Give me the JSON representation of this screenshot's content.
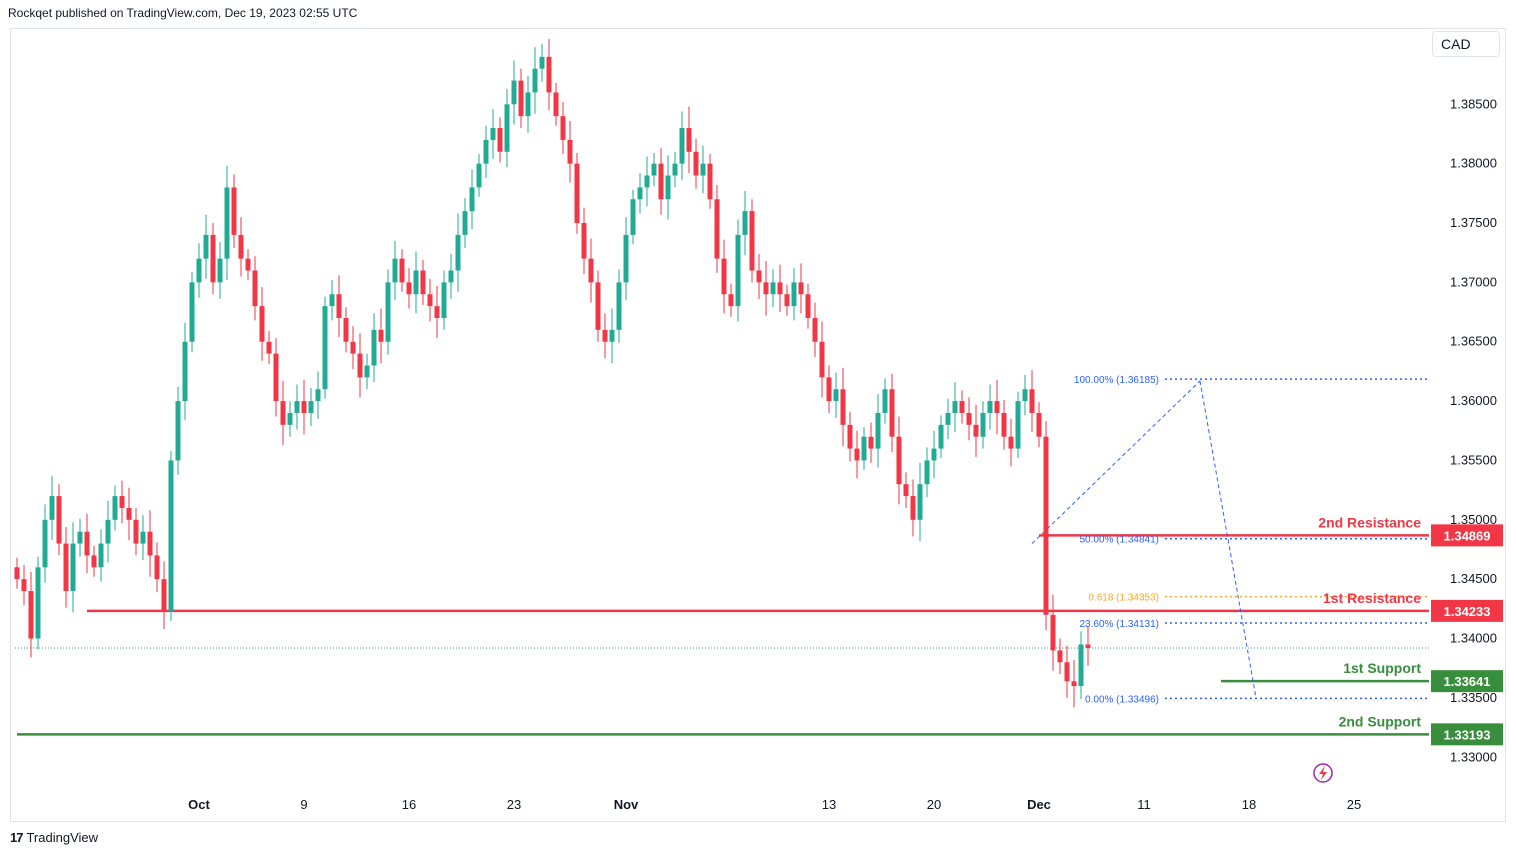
{
  "header": {
    "text": "Rockqet published on TradingView.com, Dec 19, 2023 02:55 UTC"
  },
  "footer": {
    "logo": "17",
    "brand": "TradingView"
  },
  "currency": "CAD",
  "colors": {
    "up": "#22ab94",
    "down": "#f23645",
    "resistance": "#f23645",
    "support": "#388e3c",
    "fib": "#2962ff",
    "fib_golden": "#f9a825",
    "grid": "#ffffff",
    "text": "#131722"
  },
  "chart_data": {
    "type": "candlestick",
    "symbol_quote": "CAD",
    "ylim": [
      1.328,
      1.3905
    ],
    "yticks": [
      "1.33000",
      "1.33500",
      "1.34000",
      "1.34500",
      "1.35000",
      "1.35500",
      "1.36000",
      "1.36500",
      "1.37000",
      "1.37500",
      "1.38000",
      "1.38500"
    ],
    "xticks": [
      {
        "label": "Oct",
        "bold": true,
        "idx": 26
      },
      {
        "label": "9",
        "bold": false,
        "idx": 41
      },
      {
        "label": "16",
        "bold": false,
        "idx": 56
      },
      {
        "label": "23",
        "bold": false,
        "idx": 71
      },
      {
        "label": "Nov",
        "bold": true,
        "idx": 87
      },
      {
        "label": "13",
        "bold": false,
        "idx": 116
      },
      {
        "label": "20",
        "bold": false,
        "idx": 131
      },
      {
        "label": "Dec",
        "bold": true,
        "idx": 146
      },
      {
        "label": "11",
        "bold": false,
        "idx": 161
      },
      {
        "label": "18",
        "bold": false,
        "idx": 176
      },
      {
        "label": "25",
        "bold": false,
        "idx": 191
      }
    ],
    "close": [
      1.345,
      1.344,
      1.34,
      1.346,
      1.35,
      1.352,
      1.348,
      1.344,
      1.348,
      1.349,
      1.347,
      1.346,
      1.348,
      1.35,
      1.352,
      1.351,
      1.35,
      1.348,
      1.349,
      1.347,
      1.345,
      1.3423,
      1.355,
      1.36,
      1.365,
      1.37,
      1.372,
      1.374,
      1.37,
      1.372,
      1.378,
      1.374,
      1.372,
      1.371,
      1.368,
      1.365,
      1.364,
      1.36,
      1.358,
      1.359,
      1.36,
      1.359,
      1.36,
      1.361,
      1.368,
      1.369,
      1.367,
      1.365,
      1.364,
      1.362,
      1.363,
      1.366,
      1.365,
      1.37,
      1.372,
      1.37,
      1.369,
      1.371,
      1.369,
      1.368,
      1.367,
      1.37,
      1.371,
      1.374,
      1.376,
      1.378,
      1.38,
      1.382,
      1.383,
      1.381,
      1.385,
      1.387,
      1.384,
      1.386,
      1.388,
      1.389,
      1.386,
      1.384,
      1.382,
      1.38,
      1.375,
      1.372,
      1.37,
      1.366,
      1.365,
      1.366,
      1.37,
      1.374,
      1.377,
      1.378,
      1.379,
      1.38,
      1.377,
      1.379,
      1.38,
      1.383,
      1.381,
      1.379,
      1.38,
      1.377,
      1.372,
      1.369,
      1.368,
      1.374,
      1.376,
      1.371,
      1.37,
      1.369,
      1.37,
      1.369,
      1.368,
      1.37,
      1.369,
      1.367,
      1.365,
      1.362,
      1.36,
      1.361,
      1.358,
      1.356,
      1.355,
      1.357,
      1.356,
      1.359,
      1.361,
      1.357,
      1.353,
      1.352,
      1.35,
      1.353,
      1.355,
      1.356,
      1.358,
      1.359,
      1.36,
      1.359,
      1.358,
      1.357,
      1.359,
      1.36,
      1.359,
      1.357,
      1.356,
      1.36,
      1.361,
      1.359,
      1.357,
      1.342,
      1.339,
      1.338,
      1.3364,
      1.336,
      1.3395,
      1.3392
    ],
    "levels": [
      {
        "label": "2nd Resistance",
        "value": 1.34869,
        "value_text": "1.34869",
        "kind": "resistance",
        "start_idx": 146
      },
      {
        "label": "1st Resistance",
        "value": 1.34233,
        "value_text": "1.34233",
        "kind": "resistance",
        "start_idx": 10
      },
      {
        "label": "1st Support",
        "value": 1.33641,
        "value_text": "1.33641",
        "kind": "support",
        "start_idx": 172
      },
      {
        "label": "2nd Support",
        "value": 1.33193,
        "value_text": "1.33193",
        "kind": "support",
        "start_idx": 0
      }
    ],
    "fib": [
      {
        "label": "100.00% (1.36185)",
        "value": 1.36185,
        "golden": false
      },
      {
        "label": "50.00% (1.34841)",
        "value": 1.34841,
        "golden": false
      },
      {
        "label": "0.618 (1.34353)",
        "value": 1.34353,
        "golden": true
      },
      {
        "label": "23.60% (1.34131)",
        "value": 1.34131,
        "golden": false
      },
      {
        "label": "0.00% (1.33496)",
        "value": 1.33496,
        "golden": false
      }
    ],
    "last_price": 1.3392
  }
}
